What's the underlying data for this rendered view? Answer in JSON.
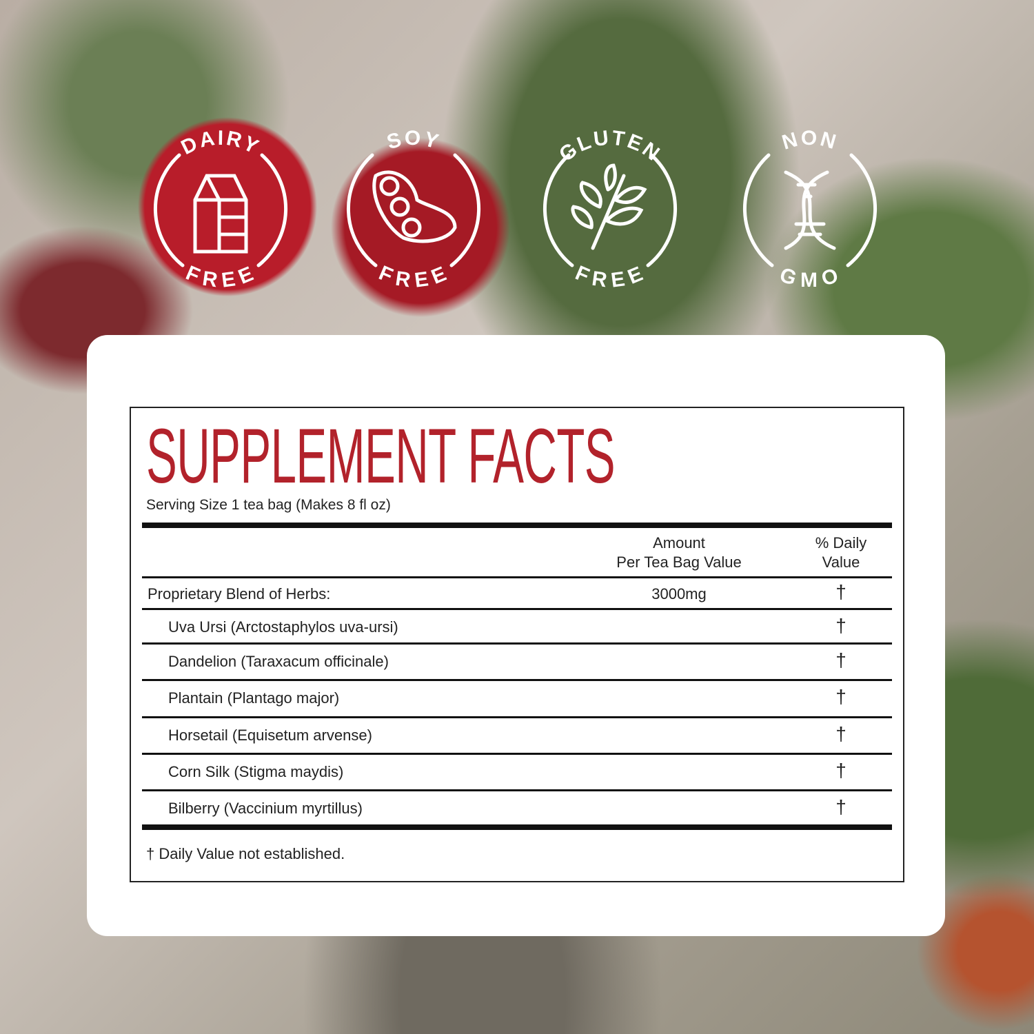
{
  "badges": [
    {
      "top": "DAIRY",
      "bottom": "FREE",
      "icon": "milk-carton-icon"
    },
    {
      "top": "SOY",
      "bottom": "FREE",
      "icon": "soybean-icon"
    },
    {
      "top": "GLUTEN",
      "bottom": "FREE",
      "icon": "wheat-icon"
    },
    {
      "top": "NON",
      "bottom": "GMO",
      "icon": "dna-icon"
    }
  ],
  "facts": {
    "title": "SUPPLEMENT FACTS",
    "serving": "Serving Size 1 tea bag (Makes 8 fl oz)",
    "header_amount_1": "Amount",
    "header_amount_2": "Per Tea Bag Value",
    "header_dv_1": "% Daily",
    "header_dv_2": "Value",
    "rows": [
      {
        "name": "Proprietary Blend of Herbs:",
        "amount": "3000mg",
        "dv": "†"
      },
      {
        "name": "Uva Ursi (Arctostaphylos uva-ursi)",
        "dv": "†"
      },
      {
        "name": "Dandelion (Taraxacum officinale)",
        "dv": "†"
      },
      {
        "name": "Plantain (Plantago major)",
        "dv": "†"
      },
      {
        "name": "Horsetail (Equisetum arvense)",
        "dv": "†"
      },
      {
        "name": "Corn Silk (Stigma maydis)",
        "dv": "†"
      },
      {
        "name": "Bilberry (Vaccinium myrtillus)",
        "dv": "†"
      }
    ],
    "footnote": "† Daily Value not established."
  },
  "colors": {
    "title": "#b2222b"
  }
}
